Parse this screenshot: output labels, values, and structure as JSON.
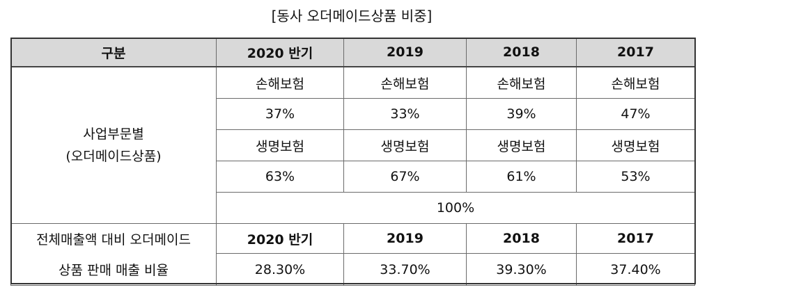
{
  "caption": "[동사 오더메이드상품 비중]",
  "header": {
    "category": "구분",
    "years": [
      "2020 반기",
      "2019",
      "2018",
      "2017"
    ]
  },
  "segment": {
    "label_line1": "사업부문별",
    "label_line2": "(오더메이드상품)",
    "non_life_label": "손해보험",
    "non_life_values": [
      "37%",
      "33%",
      "39%",
      "47%"
    ],
    "life_label": "생명보험",
    "life_values": [
      "63%",
      "67%",
      "61%",
      "53%"
    ],
    "total": "100%"
  },
  "sales_ratio": {
    "label_line1": "전체매출액 대비 오더메이드",
    "label_line2": "상품 판매 매출 비율",
    "years": [
      "2020 반기",
      "2019",
      "2018",
      "2017"
    ],
    "values": [
      "28.30%",
      "33.70%",
      "39.30%",
      "37.40%"
    ]
  }
}
